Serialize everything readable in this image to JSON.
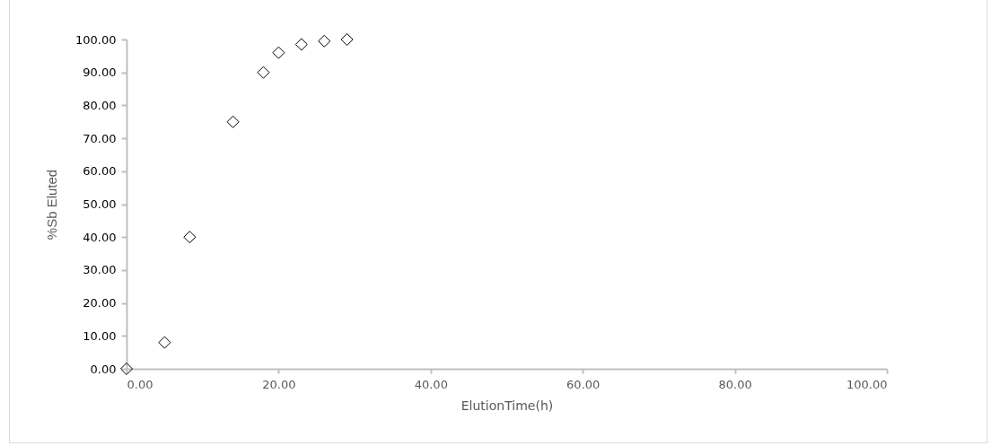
{
  "chart_data": {
    "type": "scatter",
    "xlabel": "ElutionTime(h)",
    "ylabel": "%Sb Eluted",
    "x": [
      0,
      5,
      8.3,
      14,
      18,
      20,
      23,
      26,
      29
    ],
    "series": [
      {
        "color": "#000000",
        "values": [
          0,
          8,
          40,
          75,
          90,
          96,
          98.5,
          99.5,
          100
        ]
      }
    ],
    "xlim": [
      0,
      100
    ],
    "xticks": [
      {
        "value": 0,
        "label": "0.00"
      },
      {
        "value": 20,
        "label": "20.00"
      },
      {
        "value": 40,
        "label": "40.00"
      },
      {
        "value": 60,
        "label": "60.00"
      },
      {
        "value": 80,
        "label": "80.00"
      },
      {
        "value": 100,
        "label": "100.00"
      }
    ],
    "ylim": [
      0,
      100
    ],
    "yticks": [
      {
        "value": 0,
        "label": "0.00"
      },
      {
        "value": 10,
        "label": "10.00"
      },
      {
        "value": 20,
        "label": "20.00"
      },
      {
        "value": 30,
        "label": "30.00"
      },
      {
        "value": 40,
        "label": "40.00"
      },
      {
        "value": 50,
        "label": "50.00"
      },
      {
        "value": 60,
        "label": "60.00"
      },
      {
        "value": 70,
        "label": "70.00"
      },
      {
        "value": 80,
        "label": "80.00"
      },
      {
        "value": 90,
        "label": "90.00"
      },
      {
        "value": 100,
        "label": "100.00"
      }
    ],
    "marker": "diamond",
    "grid": false,
    "legend": false
  }
}
